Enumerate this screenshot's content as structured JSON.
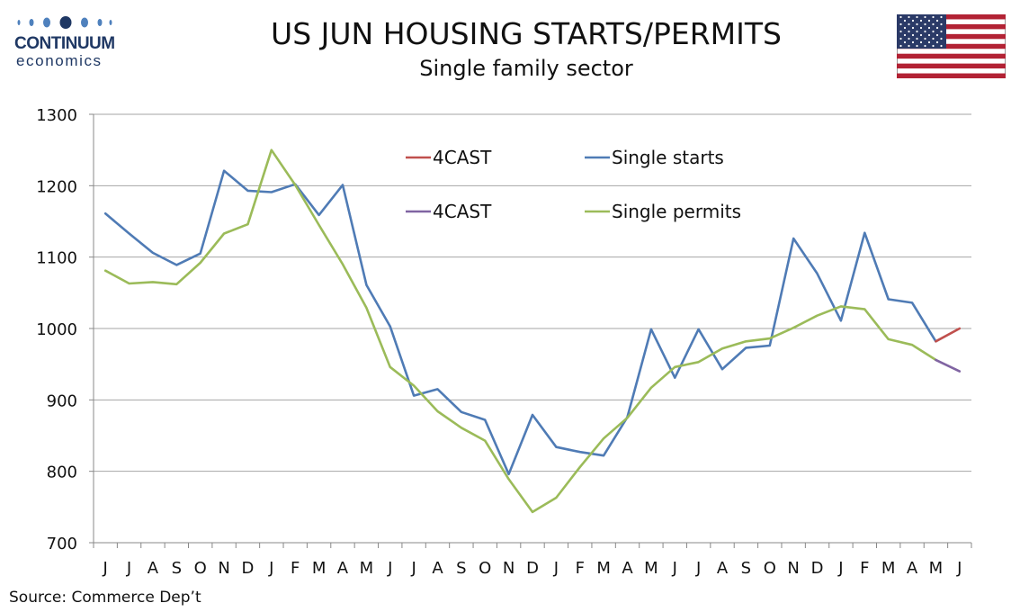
{
  "header": {
    "title": "US JUN HOUSING STARTS/PERMITS",
    "subtitle": "Single family sector"
  },
  "logo": {
    "name": "CONTINUUM",
    "sub": "economics",
    "color": "#1f3864"
  },
  "flag": {
    "icon": "us-flag-icon"
  },
  "source": "Source: Commerce Dep’t",
  "chart_data": {
    "type": "line",
    "title": "US JUN HOUSING STARTS/PERMITS",
    "subtitle": "Single family sector",
    "categories": [
      "J",
      "J",
      "A",
      "S",
      "O",
      "N",
      "D",
      "J",
      "F",
      "M",
      "A",
      "M",
      "J",
      "J",
      "A",
      "S",
      "O",
      "N",
      "D",
      "J",
      "F",
      "M",
      "A",
      "M",
      "J",
      "J",
      "A",
      "S",
      "O",
      "N",
      "D",
      "J",
      "F",
      "M",
      "A",
      "M",
      "J"
    ],
    "ylim": [
      700,
      1300
    ],
    "yticks": [
      700,
      800,
      900,
      1000,
      1100,
      1200,
      1300
    ],
    "grid": true,
    "legend_placement": "top-center",
    "series": [
      {
        "name": "Single starts",
        "color": "#4f7bb5",
        "values": [
          1161,
          1133,
          1106,
          1089,
          1105,
          1221,
          1193,
          1191,
          1202,
          1159,
          1201,
          1061,
          1003,
          906,
          915,
          883,
          872,
          796,
          879,
          834,
          827,
          822,
          876,
          999,
          931,
          999,
          943,
          973,
          976,
          1126,
          1077,
          1011,
          1134,
          1041,
          1036,
          982,
          null
        ]
      },
      {
        "name": "4CAST",
        "color": "#c0504d",
        "values": [
          null,
          null,
          null,
          null,
          null,
          null,
          null,
          null,
          null,
          null,
          null,
          null,
          null,
          null,
          null,
          null,
          null,
          null,
          null,
          null,
          null,
          null,
          null,
          null,
          null,
          null,
          null,
          null,
          null,
          null,
          null,
          null,
          null,
          null,
          null,
          982,
          1000
        ]
      },
      {
        "name": "Single permits",
        "color": "#9bbb59",
        "values": [
          1081,
          1063,
          1065,
          1062,
          1092,
          1133,
          1146,
          1250,
          1201,
          1145,
          1090,
          1029,
          946,
          920,
          884,
          861,
          843,
          789,
          743,
          763,
          806,
          846,
          875,
          917,
          946,
          953,
          972,
          982,
          986,
          1001,
          1018,
          1031,
          1027,
          985,
          977,
          956,
          null
        ]
      },
      {
        "name": "4CAST",
        "color": "#8064a2",
        "values": [
          null,
          null,
          null,
          null,
          null,
          null,
          null,
          null,
          null,
          null,
          null,
          null,
          null,
          null,
          null,
          null,
          null,
          null,
          null,
          null,
          null,
          null,
          null,
          null,
          null,
          null,
          null,
          null,
          null,
          null,
          null,
          null,
          null,
          null,
          null,
          956,
          940
        ]
      }
    ],
    "legend": [
      {
        "label": "4CAST",
        "color": "#c0504d"
      },
      {
        "label": "Single starts",
        "color": "#4f7bb5"
      },
      {
        "label": "4CAST",
        "color": "#8064a2"
      },
      {
        "label": "Single permits",
        "color": "#9bbb59"
      }
    ]
  }
}
